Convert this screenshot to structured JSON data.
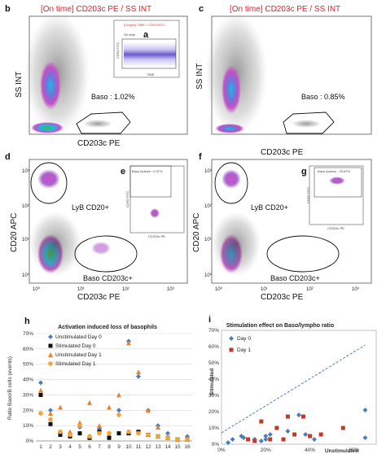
{
  "panels": {
    "b": {
      "letter": "b",
      "title": "[On time] CD203c PE / SS INT",
      "xlabel": "CD203c PE",
      "ylabel": "SS INT",
      "gate_label": "Baso : 1.02%"
    },
    "a": {
      "letter": "a",
      "inset_title": "[Lingres] TIME > CD63 FITC",
      "inset_label": "On time",
      "inset_ylabel": "CD63 FITC",
      "inset_xlabel": "TIME"
    },
    "c": {
      "letter": "c",
      "title": "[On time] CD203c PE / SS INT",
      "xlabel": "CD203c PE",
      "ylabel": "SS INT",
      "gate_label": "Baso : 0.85%"
    },
    "d": {
      "letter": "d",
      "xlabel": "CD203c PE",
      "ylabel": "CD20 APC",
      "gate1": "LyB CD20+",
      "gate2": "Baso CD203c+",
      "ticks": [
        "10³",
        "10²",
        "10¹",
        "10⁰",
        "10⁰",
        "10¹",
        "10²",
        "10³"
      ]
    },
    "e": {
      "letter": "e",
      "inset_title": "Baso Actives : 0.37%",
      "inset_ylabel": "CD63 FITC",
      "inset_xlabel": "CD203c PE"
    },
    "f": {
      "letter": "f",
      "xlabel": "CD203c PE",
      "ylabel": "CD20 APC",
      "gate1": "LyB CD20+",
      "gate2": "Baso CD203c+",
      "ticks": [
        "10³",
        "10²",
        "10¹",
        "10⁰",
        "10⁰",
        "10¹",
        "10²",
        "10³"
      ]
    },
    "g": {
      "letter": "g",
      "inset_title": "Baso Actives : 78.87%",
      "inset_ylabel": "CD63 FITC",
      "inset_xlabel": "CD203c PE"
    },
    "h": {
      "letter": "h"
    },
    "i": {
      "letter": "i"
    }
  },
  "chart_data": [
    {
      "type": "scatter",
      "title": "Activation induced loss of basophils",
      "xlabel": "",
      "ylabel": "Ratio Baso/B cells (events)",
      "ylim": [
        0,
        0.7
      ],
      "xlim": [
        0.5,
        16.5
      ],
      "x_ticks": [
        "1",
        "2",
        "3",
        "4",
        "5",
        "6",
        "7",
        "8",
        "9",
        "10",
        "11",
        "12",
        "13",
        "14",
        "15",
        "16"
      ],
      "y_ticks": [
        "0%",
        "10%",
        "20%",
        "30%",
        "40%",
        "50%",
        "60%",
        "70%"
      ],
      "grid": true,
      "legend_position": "top-left",
      "series": [
        {
          "name": "Unstimulated Day 0",
          "marker": "diamond",
          "color": "#4a7ebb",
          "points": [
            [
              1,
              0.38
            ],
            [
              2,
              0.2
            ],
            [
              3,
              0.05
            ],
            [
              4,
              0.05
            ],
            [
              5,
              0.09
            ],
            [
              6,
              0.03
            ],
            [
              7,
              0.08
            ],
            [
              8,
              0.03
            ],
            [
              9,
              0.2
            ],
            [
              10,
              0.65
            ],
            [
              11,
              0.42
            ],
            [
              12,
              0.2
            ],
            [
              13,
              0.1
            ],
            [
              14,
              0.05
            ],
            [
              15,
              0.01
            ],
            [
              16,
              0.03
            ]
          ]
        },
        {
          "name": "Stimulated Day 0",
          "marker": "square",
          "color": "#111111",
          "points": [
            [
              1,
              0.3
            ],
            [
              2,
              0.11
            ],
            [
              3,
              0.04
            ],
            [
              4,
              0.03
            ],
            [
              5,
              0.05
            ],
            [
              6,
              0.02
            ],
            [
              7,
              0.06
            ],
            [
              8,
              0.02
            ],
            [
              9,
              0.05
            ],
            [
              10,
              0.05
            ],
            [
              11,
              0.06
            ],
            [
              12,
              0.04
            ],
            [
              13,
              0.03
            ],
            [
              14,
              0.02
            ],
            [
              15,
              0.01
            ],
            [
              16,
              0.01
            ]
          ]
        },
        {
          "name": "Unstimulated Day 1",
          "marker": "triangle",
          "color": "#e8822d",
          "points": [
            [
              1,
              0.33
            ],
            [
              2,
              0.18
            ],
            [
              3,
              0.22
            ],
            [
              4,
              0.06
            ],
            [
              5,
              0.12
            ],
            [
              6,
              0.25
            ],
            [
              7,
              0.1
            ],
            [
              8,
              0.22
            ],
            [
              9,
              0.3
            ],
            [
              10,
              0.64
            ],
            [
              11,
              0.45
            ],
            [
              12,
              0.2
            ],
            [
              13,
              0.09
            ],
            [
              14,
              0.03
            ],
            [
              15,
              0.01
            ],
            [
              16,
              0.02
            ]
          ]
        },
        {
          "name": "Stimulated Day 1",
          "marker": "circle",
          "color": "#f2a33a",
          "points": [
            [
              1,
              0.18
            ],
            [
              2,
              0.14
            ],
            [
              3,
              0.06
            ],
            [
              4,
              0.04
            ],
            [
              5,
              0.1
            ],
            [
              6,
              0.03
            ],
            [
              7,
              0.05
            ],
            [
              8,
              0.05
            ],
            [
              9,
              0.17
            ],
            [
              10,
              0.06
            ],
            [
              11,
              0.05
            ],
            [
              12,
              0.04
            ],
            [
              13,
              0.03
            ],
            [
              14,
              0.02
            ],
            [
              15,
              0.01
            ],
            [
              16,
              0.01
            ]
          ]
        }
      ],
      "legend": [
        {
          "label": "Unstimulated   Day 0"
        },
        {
          "label": "Stimulated      Day 0"
        },
        {
          "label": "Unstimulated   Day 1"
        },
        {
          "label": "Stimulated      Day 1"
        }
      ]
    },
    {
      "type": "scatter",
      "title": "Stimulation effect on Baso/lympho ratio",
      "xlabel": "Unstimulated",
      "ylabel": "Stimulated",
      "xlim": [
        0,
        0.7
      ],
      "ylim": [
        0,
        0.7
      ],
      "x_ticks": [
        "0%",
        "20%",
        "40%",
        "60%"
      ],
      "y_ticks": [
        "0%",
        "10%",
        "20%",
        "30%",
        "40%",
        "50%",
        "60%",
        "70%"
      ],
      "grid": false,
      "legend_position": "top-left",
      "series": [
        {
          "name": "Day 0",
          "marker": "diamond",
          "color": "#4a7ebb",
          "points": [
            [
              0.05,
              0.03
            ],
            [
              0.1,
              0.04
            ],
            [
              0.15,
              0.03
            ],
            [
              0.18,
              0.02
            ],
            [
              0.2,
              0.03
            ],
            [
              0.22,
              0.06
            ],
            [
              0.3,
              0.08
            ],
            [
              0.35,
              0.18
            ],
            [
              0.38,
              0.06
            ],
            [
              0.42,
              0.03
            ],
            [
              0.65,
              0.04
            ],
            [
              0.65,
              0.21
            ],
            [
              0.2,
              0.05
            ],
            [
              0.09,
              0.05
            ],
            [
              0.03,
              0.01
            ]
          ]
        },
        {
          "name": "Day 1",
          "marker": "square",
          "color": "#c0392b",
          "points": [
            [
              0.12,
              0.03
            ],
            [
              0.18,
              0.14
            ],
            [
              0.22,
              0.03
            ],
            [
              0.25,
              0.1
            ],
            [
              0.3,
              0.17
            ],
            [
              0.37,
              0.17
            ],
            [
              0.45,
              0.06
            ],
            [
              0.55,
              0.1
            ],
            [
              0.33,
              0.06
            ],
            [
              0.4,
              0.05
            ],
            [
              0.28,
              0.03
            ],
            [
              0.15,
              0.02
            ]
          ]
        }
      ],
      "trendline": {
        "style": "dashed",
        "color": "#4a7ebb",
        "from": [
          0,
          0.07
        ],
        "to": [
          0.65,
          0.61
        ]
      }
    }
  ]
}
